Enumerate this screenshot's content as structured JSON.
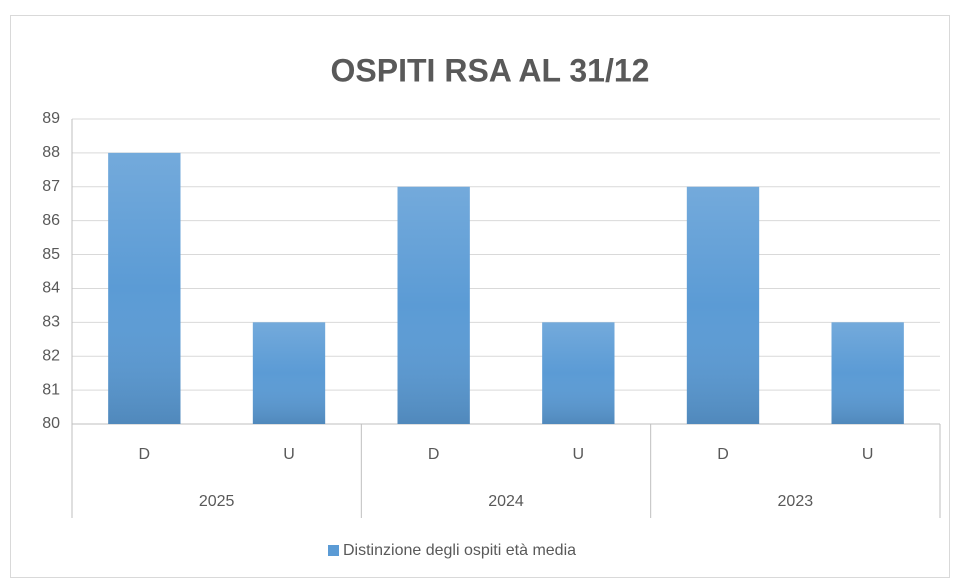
{
  "chart_data": {
    "type": "bar",
    "title": "OSPITI RSA AL 31/12",
    "categories": [
      "D",
      "U",
      "D",
      "U",
      "D",
      "U"
    ],
    "groups": [
      "2025",
      "2024",
      "2023"
    ],
    "series": [
      {
        "name": "Distinzione degli ospiti età media",
        "color": "#5b9bd5",
        "values": [
          88,
          83,
          87,
          83,
          87,
          83
        ]
      }
    ],
    "ylim": [
      80,
      89
    ],
    "yticks": [
      80,
      81,
      82,
      83,
      84,
      85,
      86,
      87,
      88,
      89
    ],
    "grid": true,
    "legend": "bottom"
  }
}
